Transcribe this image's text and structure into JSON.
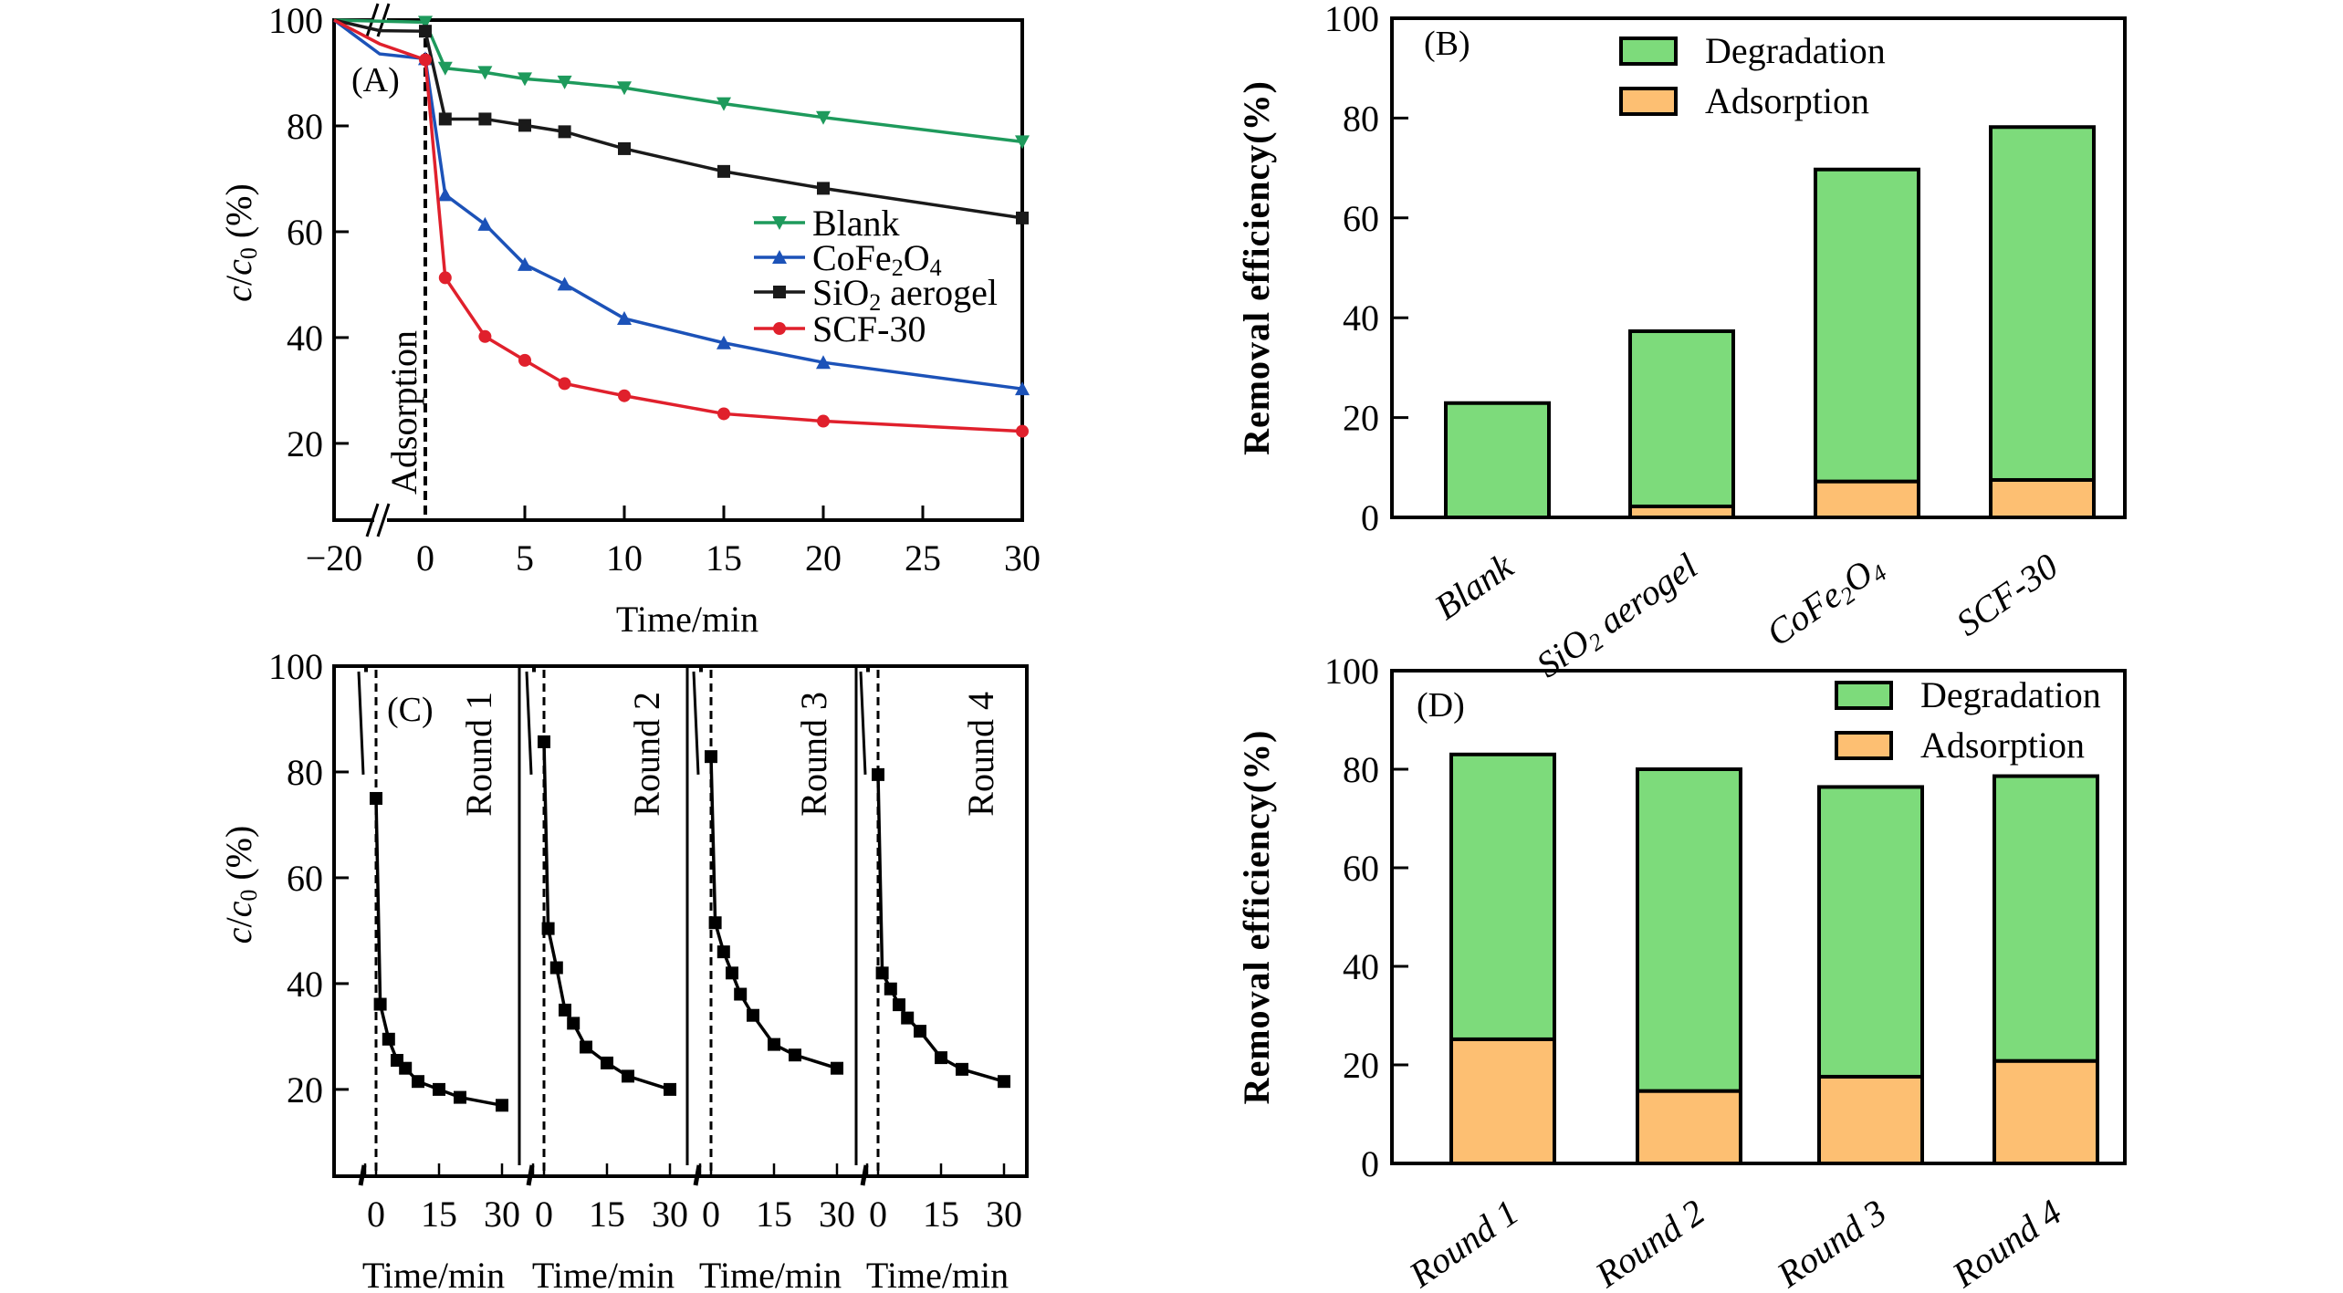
{
  "figure": {
    "panels": [
      "A",
      "B",
      "C",
      "D"
    ]
  },
  "chart_data": [
    {
      "id": "A",
      "type": "line",
      "panel_label": "(A)",
      "xlabel": "Time/min",
      "ylabel_parts": {
        "c": "c",
        "slash": "/",
        "c0": "c",
        "sub0": "0",
        "unit": " (%)"
      },
      "xticks": [
        -20,
        0,
        5,
        10,
        15,
        20,
        25,
        30
      ],
      "xtick_labels": [
        "−20",
        "0",
        "5",
        "10",
        "15",
        "20",
        "25",
        "30"
      ],
      "yticks": [
        20,
        40,
        60,
        80,
        100
      ],
      "ylim": [
        5.5,
        100
      ],
      "xlim": [
        -20,
        30
      ],
      "axis_break_x": -10,
      "annotation": "Adsorption",
      "legend_position": "center-right",
      "series": [
        {
          "name": "Blank",
          "label_main": "Blank",
          "label_sub": "",
          "label_tail": "",
          "color": "#1e9a5c",
          "marker": "triangle-down",
          "x": [
            -20,
            0,
            1,
            3,
            5,
            7,
            10,
            15,
            20,
            30
          ],
          "y": [
            100,
            99.6,
            90.9,
            90.1,
            88.9,
            88.3,
            87.2,
            84.2,
            81.6,
            77.0
          ]
        },
        {
          "name": "CoFe2O4",
          "label_main": "CoFe",
          "label_sub": "2",
          "label_tail": "O",
          "label_sub2": "4",
          "color": "#1c52b8",
          "marker": "triangle-up",
          "x": [
            -20,
            -10,
            0,
            1,
            3,
            5,
            7,
            10,
            15,
            20,
            30
          ],
          "y": [
            100,
            93.6,
            92.7,
            67.0,
            61.4,
            53.8,
            50.1,
            43.6,
            39.0,
            35.3,
            30.3
          ]
        },
        {
          "name": "SiO2 aerogel",
          "label_main": "SiO",
          "label_sub": "2",
          "label_tail": " aerogel",
          "color": "#1a1a1a",
          "marker": "square",
          "x": [
            -20,
            -10,
            0,
            1,
            3,
            5,
            7,
            10,
            15,
            20,
            30
          ],
          "y": [
            100,
            98.0,
            97.9,
            81.3,
            81.3,
            80.1,
            78.9,
            75.7,
            71.4,
            68.2,
            62.6
          ]
        },
        {
          "name": "SCF-30",
          "label_main": "SCF-30",
          "label_sub": "",
          "label_tail": "",
          "color": "#e0202c",
          "marker": "circle",
          "x": [
            -20,
            -10,
            0,
            1,
            3,
            5,
            7,
            10,
            15,
            20,
            30
          ],
          "y": [
            100,
            95.5,
            92.5,
            51.3,
            40.2,
            35.7,
            31.3,
            29.0,
            25.6,
            24.2,
            22.3
          ]
        }
      ]
    },
    {
      "id": "B",
      "type": "bar",
      "stacked": true,
      "panel_label": "(B)",
      "ylabel": "Removal efficiency(%)",
      "xlabel": "",
      "yticks": [
        0,
        20,
        40,
        60,
        80,
        100
      ],
      "ylim": [
        0,
        100
      ],
      "legend_position": "top-center",
      "categories": [
        {
          "main": "Blank",
          "sub": "",
          "tail": "",
          "sub2": ""
        },
        {
          "main": "SiO",
          "sub": "2",
          "tail": " aerogel",
          "sub2": ""
        },
        {
          "main": "CoFe",
          "sub": "2",
          "tail": "O",
          "sub2": "4"
        },
        {
          "main": "SCF-30",
          "sub": "",
          "tail": "",
          "sub2": ""
        }
      ],
      "category_names": [
        "Blank",
        "SiO2 aerogel",
        "CoFe2O4",
        "SCF-30"
      ],
      "series": [
        {
          "name": "Adsorption",
          "color": "#fdbf72",
          "values": [
            0,
            2.2,
            7.2,
            7.5
          ]
        },
        {
          "name": "Degradation",
          "color": "#7ddb7b",
          "values": [
            22.9,
            35.1,
            62.5,
            70.7
          ]
        }
      ],
      "totals": [
        22.9,
        37.3,
        69.7,
        78.2
      ],
      "legend": [
        "Degradation",
        "Adsorption"
      ]
    },
    {
      "id": "C",
      "type": "line",
      "panel_label": "(C)",
      "xlabel": "Time/min",
      "ylabel_parts": {
        "c": "c",
        "slash": "/",
        "c0": "c",
        "sub0": "0",
        "unit": " (%)"
      },
      "yticks": [
        20,
        40,
        60,
        80,
        100
      ],
      "ylim": [
        3.6,
        100
      ],
      "xticks": [
        0,
        15,
        30
      ],
      "xtick_labels": [
        "0",
        "15",
        "30"
      ],
      "color": "#000000",
      "rounds": [
        {
          "name": "Round 1",
          "x": [
            0,
            1,
            3,
            5,
            7,
            10,
            15,
            20,
            30
          ],
          "y": [
            75.0,
            36.1,
            29.5,
            25.5,
            24.0,
            21.5,
            20.0,
            18.5,
            17.0
          ]
        },
        {
          "name": "Round 2",
          "x": [
            0,
            1,
            3,
            5,
            7,
            10,
            15,
            20,
            30
          ],
          "y": [
            85.7,
            50.4,
            43.0,
            35.0,
            32.5,
            28.0,
            25.0,
            22.5,
            20.0
          ]
        },
        {
          "name": "Round 3",
          "x": [
            0,
            1,
            3,
            5,
            7,
            10,
            15,
            20,
            30
          ],
          "y": [
            82.9,
            51.5,
            46.0,
            42.0,
            38.0,
            34.0,
            28.5,
            26.5,
            24.0
          ]
        },
        {
          "name": "Round 4",
          "x": [
            0,
            1,
            3,
            5,
            7,
            10,
            15,
            20,
            30
          ],
          "y": [
            79.5,
            42.0,
            39.0,
            36.0,
            33.5,
            31.0,
            26.0,
            23.8,
            21.5
          ]
        }
      ]
    },
    {
      "id": "D",
      "type": "bar",
      "stacked": true,
      "panel_label": "(D)",
      "ylabel": "Removal efficiency(%)",
      "xlabel": "",
      "yticks": [
        0,
        20,
        40,
        60,
        80,
        100
      ],
      "ylim": [
        0,
        100
      ],
      "legend_position": "top-right",
      "categories": [
        "Round 1",
        "Round 2",
        "Round 3",
        "Round 4"
      ],
      "series": [
        {
          "name": "Adsorption",
          "color": "#fdbf72",
          "values": [
            25.2,
            14.7,
            17.6,
            20.8
          ]
        },
        {
          "name": "Degradation",
          "color": "#7ddb7b",
          "values": [
            57.8,
            65.3,
            58.8,
            57.8
          ]
        }
      ],
      "totals": [
        83.0,
        80.0,
        76.4,
        78.6
      ],
      "legend": [
        "Degradation",
        "Adsorption"
      ]
    }
  ]
}
